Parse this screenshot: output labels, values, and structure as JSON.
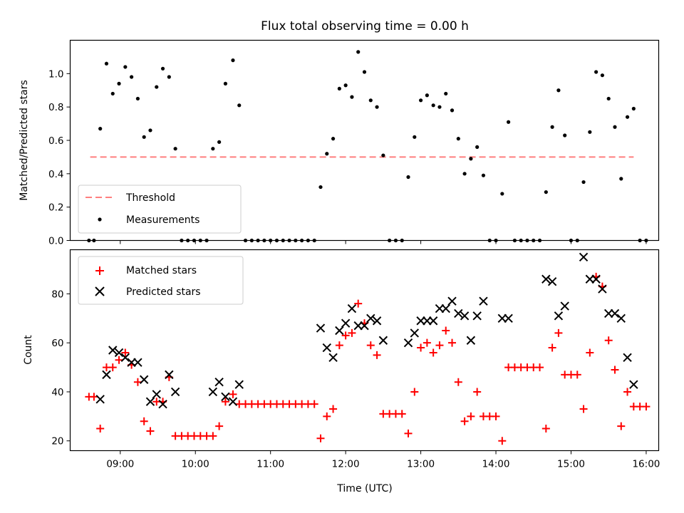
{
  "chart_data": [
    {
      "type": "scatter",
      "title": "Flux total observing time = 0.00 h",
      "xlabel": "",
      "ylabel": "Matched/Predicted stars",
      "xlim": [
        "08:20",
        "16:10"
      ],
      "ylim": [
        0,
        1.2
      ],
      "yticks": [
        0.0,
        0.2,
        0.4,
        0.6,
        0.8,
        1.0
      ],
      "ytick_labels": [
        "0.0",
        "0.2",
        "0.4",
        "0.6",
        "0.8",
        "1.0"
      ],
      "legend_position": "lower-left",
      "series": [
        {
          "name": "Threshold",
          "kind": "dashed-line",
          "color": "#ff7f7f",
          "points": [
            [
              "08:36",
              0.5
            ],
            [
              "15:50",
              0.5
            ]
          ]
        },
        {
          "name": "Measurements",
          "kind": "dot",
          "color": "#000000",
          "points": [
            [
              "08:35",
              0.0
            ],
            [
              "08:39",
              0.0
            ],
            [
              "08:44",
              0.67
            ],
            [
              "08:49",
              1.06
            ],
            [
              "08:54",
              0.88
            ],
            [
              "08:59",
              0.94
            ],
            [
              "09:04",
              1.04
            ],
            [
              "09:09",
              0.98
            ],
            [
              "09:14",
              0.85
            ],
            [
              "09:19",
              0.62
            ],
            [
              "09:24",
              0.66
            ],
            [
              "09:29",
              0.92
            ],
            [
              "09:34",
              1.03
            ],
            [
              "09:39",
              0.98
            ],
            [
              "09:44",
              0.55
            ],
            [
              "09:49",
              0.0
            ],
            [
              "09:54",
              0.0
            ],
            [
              "09:59",
              0.0
            ],
            [
              "10:04",
              0.0
            ],
            [
              "10:09",
              0.0
            ],
            [
              "10:14",
              0.55
            ],
            [
              "10:19",
              0.59
            ],
            [
              "10:24",
              0.94
            ],
            [
              "10:30",
              1.08
            ],
            [
              "10:35",
              0.81
            ],
            [
              "10:40",
              0.0
            ],
            [
              "10:45",
              0.0
            ],
            [
              "10:50",
              0.0
            ],
            [
              "10:55",
              0.0
            ],
            [
              "11:00",
              0.0
            ],
            [
              "11:05",
              0.0
            ],
            [
              "11:10",
              0.0
            ],
            [
              "11:15",
              0.0
            ],
            [
              "11:20",
              0.0
            ],
            [
              "11:25",
              0.0
            ],
            [
              "11:30",
              0.0
            ],
            [
              "11:35",
              0.0
            ],
            [
              "11:40",
              0.32
            ],
            [
              "11:45",
              0.52
            ],
            [
              "11:50",
              0.61
            ],
            [
              "11:55",
              0.91
            ],
            [
              "12:00",
              0.93
            ],
            [
              "12:05",
              0.86
            ],
            [
              "12:10",
              1.13
            ],
            [
              "12:15",
              1.01
            ],
            [
              "12:20",
              0.84
            ],
            [
              "12:25",
              0.8
            ],
            [
              "12:30",
              0.51
            ],
            [
              "12:35",
              0.0
            ],
            [
              "12:40",
              0.0
            ],
            [
              "12:45",
              0.0
            ],
            [
              "12:50",
              0.38
            ],
            [
              "12:55",
              0.62
            ],
            [
              "13:00",
              0.84
            ],
            [
              "13:05",
              0.87
            ],
            [
              "13:10",
              0.81
            ],
            [
              "13:15",
              0.8
            ],
            [
              "13:20",
              0.88
            ],
            [
              "13:25",
              0.78
            ],
            [
              "13:30",
              0.61
            ],
            [
              "13:35",
              0.4
            ],
            [
              "13:40",
              0.49
            ],
            [
              "13:45",
              0.56
            ],
            [
              "13:50",
              0.39
            ],
            [
              "13:55",
              0.0
            ],
            [
              "14:00",
              0.0
            ],
            [
              "14:05",
              0.28
            ],
            [
              "14:10",
              0.71
            ],
            [
              "14:15",
              0.0
            ],
            [
              "14:20",
              0.0
            ],
            [
              "14:25",
              0.0
            ],
            [
              "14:30",
              0.0
            ],
            [
              "14:35",
              0.0
            ],
            [
              "14:40",
              0.29
            ],
            [
              "14:45",
              0.68
            ],
            [
              "14:50",
              0.9
            ],
            [
              "14:55",
              0.63
            ],
            [
              "15:00",
              0.0
            ],
            [
              "15:05",
              0.0
            ],
            [
              "15:10",
              0.35
            ],
            [
              "15:15",
              0.65
            ],
            [
              "15:20",
              1.01
            ],
            [
              "15:25",
              0.99
            ],
            [
              "15:30",
              0.85
            ],
            [
              "15:35",
              0.68
            ],
            [
              "15:40",
              0.37
            ],
            [
              "15:45",
              0.74
            ],
            [
              "15:50",
              0.79
            ],
            [
              "15:55",
              0.0
            ],
            [
              "16:00",
              0.0
            ]
          ]
        }
      ]
    },
    {
      "type": "scatter",
      "title": "",
      "xlabel": "Time (UTC)",
      "ylabel": "Count",
      "xlim": [
        "08:20",
        "16:10"
      ],
      "ylim": [
        16,
        98
      ],
      "yticks": [
        20,
        40,
        60,
        80
      ],
      "ytick_labels": [
        "20",
        "40",
        "60",
        "80"
      ],
      "xticks": [
        "09:00",
        "10:00",
        "11:00",
        "12:00",
        "13:00",
        "14:00",
        "15:00",
        "16:00"
      ],
      "xtick_labels": [
        "09:00",
        "10:00",
        "11:00",
        "12:00",
        "13:00",
        "14:00",
        "15:00",
        "16:00"
      ],
      "legend_position": "upper-left",
      "series": [
        {
          "name": "Matched stars",
          "kind": "plus",
          "color": "#ff0000",
          "points": [
            [
              "08:35",
              38
            ],
            [
              "08:39",
              38
            ],
            [
              "08:44",
              25
            ],
            [
              "08:49",
              50
            ],
            [
              "08:54",
              50
            ],
            [
              "08:59",
              53
            ],
            [
              "09:04",
              56
            ],
            [
              "09:09",
              51
            ],
            [
              "09:14",
              44
            ],
            [
              "09:19",
              28
            ],
            [
              "09:24",
              24
            ],
            [
              "09:29",
              36
            ],
            [
              "09:34",
              36
            ],
            [
              "09:39",
              46
            ],
            [
              "09:44",
              22
            ],
            [
              "09:49",
              22
            ],
            [
              "09:54",
              22
            ],
            [
              "09:59",
              22
            ],
            [
              "10:04",
              22
            ],
            [
              "10:09",
              22
            ],
            [
              "10:14",
              22
            ],
            [
              "10:19",
              26
            ],
            [
              "10:24",
              36
            ],
            [
              "10:30",
              39
            ],
            [
              "10:35",
              35
            ],
            [
              "10:40",
              35
            ],
            [
              "10:45",
              35
            ],
            [
              "10:50",
              35
            ],
            [
              "10:55",
              35
            ],
            [
              "11:00",
              35
            ],
            [
              "11:05",
              35
            ],
            [
              "11:10",
              35
            ],
            [
              "11:15",
              35
            ],
            [
              "11:20",
              35
            ],
            [
              "11:25",
              35
            ],
            [
              "11:30",
              35
            ],
            [
              "11:35",
              35
            ],
            [
              "11:40",
              21
            ],
            [
              "11:45",
              30
            ],
            [
              "11:50",
              33
            ],
            [
              "11:55",
              59
            ],
            [
              "12:00",
              63
            ],
            [
              "12:05",
              64
            ],
            [
              "12:10",
              76
            ],
            [
              "12:15",
              68
            ],
            [
              "12:20",
              59
            ],
            [
              "12:25",
              55
            ],
            [
              "12:30",
              31
            ],
            [
              "12:35",
              31
            ],
            [
              "12:40",
              31
            ],
            [
              "12:45",
              31
            ],
            [
              "12:50",
              23
            ],
            [
              "12:55",
              40
            ],
            [
              "13:00",
              58
            ],
            [
              "13:05",
              60
            ],
            [
              "13:10",
              56
            ],
            [
              "13:15",
              59
            ],
            [
              "13:20",
              65
            ],
            [
              "13:25",
              60
            ],
            [
              "13:30",
              44
            ],
            [
              "13:35",
              28
            ],
            [
              "13:40",
              30
            ],
            [
              "13:45",
              40
            ],
            [
              "13:50",
              30
            ],
            [
              "13:55",
              30
            ],
            [
              "14:00",
              30
            ],
            [
              "14:05",
              20
            ],
            [
              "14:10",
              50
            ],
            [
              "14:15",
              50
            ],
            [
              "14:20",
              50
            ],
            [
              "14:25",
              50
            ],
            [
              "14:30",
              50
            ],
            [
              "14:35",
              50
            ],
            [
              "14:40",
              25
            ],
            [
              "14:45",
              58
            ],
            [
              "14:50",
              64
            ],
            [
              "14:55",
              47
            ],
            [
              "15:00",
              47
            ],
            [
              "15:05",
              47
            ],
            [
              "15:10",
              33
            ],
            [
              "15:15",
              56
            ],
            [
              "15:20",
              87
            ],
            [
              "15:25",
              83
            ],
            [
              "15:30",
              61
            ],
            [
              "15:35",
              49
            ],
            [
              "15:40",
              26
            ],
            [
              "15:45",
              40
            ],
            [
              "15:50",
              34
            ],
            [
              "15:55",
              34
            ],
            [
              "16:00",
              34
            ]
          ]
        },
        {
          "name": "Predicted stars",
          "kind": "cross",
          "color": "#000000",
          "points": [
            [
              "08:44",
              37
            ],
            [
              "08:49",
              47
            ],
            [
              "08:54",
              57
            ],
            [
              "08:59",
              56
            ],
            [
              "09:04",
              54
            ],
            [
              "09:09",
              52
            ],
            [
              "09:14",
              52
            ],
            [
              "09:19",
              45
            ],
            [
              "09:24",
              36
            ],
            [
              "09:29",
              39
            ],
            [
              "09:34",
              35
            ],
            [
              "09:39",
              47
            ],
            [
              "09:44",
              40
            ],
            [
              "10:14",
              40
            ],
            [
              "10:19",
              44
            ],
            [
              "10:24",
              38
            ],
            [
              "10:30",
              36
            ],
            [
              "10:35",
              43
            ],
            [
              "11:40",
              66
            ],
            [
              "11:45",
              58
            ],
            [
              "11:50",
              54
            ],
            [
              "11:55",
              65
            ],
            [
              "12:00",
              68
            ],
            [
              "12:05",
              74
            ],
            [
              "12:10",
              67
            ],
            [
              "12:15",
              67
            ],
            [
              "12:20",
              70
            ],
            [
              "12:25",
              69
            ],
            [
              "12:30",
              61
            ],
            [
              "12:50",
              60
            ],
            [
              "12:55",
              64
            ],
            [
              "13:00",
              69
            ],
            [
              "13:05",
              69
            ],
            [
              "13:10",
              69
            ],
            [
              "13:15",
              74
            ],
            [
              "13:20",
              74
            ],
            [
              "13:25",
              77
            ],
            [
              "13:30",
              72
            ],
            [
              "13:35",
              71
            ],
            [
              "13:40",
              61
            ],
            [
              "13:45",
              71
            ],
            [
              "13:50",
              77
            ],
            [
              "14:05",
              70
            ],
            [
              "14:10",
              70
            ],
            [
              "14:40",
              86
            ],
            [
              "14:45",
              85
            ],
            [
              "14:50",
              71
            ],
            [
              "14:55",
              75
            ],
            [
              "15:10",
              95
            ],
            [
              "15:15",
              86
            ],
            [
              "15:20",
              86
            ],
            [
              "15:25",
              82
            ],
            [
              "15:30",
              72
            ],
            [
              "15:35",
              72
            ],
            [
              "15:40",
              70
            ],
            [
              "15:45",
              54
            ],
            [
              "15:50",
              43
            ]
          ]
        }
      ]
    }
  ]
}
